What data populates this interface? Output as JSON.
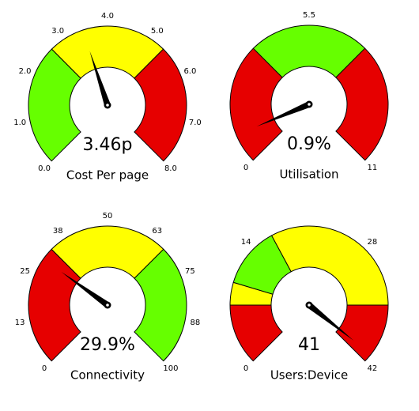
{
  "chart_data": [
    {
      "type": "gauge",
      "title": "Cost Per page",
      "value": 3.46,
      "value_label": "3.46p",
      "ylim": [
        0,
        8
      ],
      "yticks": [
        {
          "value": 0,
          "label": "0.0"
        },
        {
          "value": 1,
          "label": "1.0"
        },
        {
          "value": 2,
          "label": "2.0"
        },
        {
          "value": 3,
          "label": "3.0"
        },
        {
          "value": 4,
          "label": "4.0"
        },
        {
          "value": 5,
          "label": "5.0"
        },
        {
          "value": 6,
          "label": "6.0"
        },
        {
          "value": 7,
          "label": "7.0"
        },
        {
          "value": 8,
          "label": "8.0"
        }
      ],
      "bands": [
        {
          "from": 0,
          "to": 2.67,
          "color": "#66ff00"
        },
        {
          "from": 2.67,
          "to": 5.33,
          "color": "#ffff00"
        },
        {
          "from": 5.33,
          "to": 8,
          "color": "#e60000"
        }
      ]
    },
    {
      "type": "gauge",
      "title": "Utilisation",
      "value": 0.9,
      "value_label": "0.9%",
      "ylim": [
        0,
        11
      ],
      "yticks": [
        0,
        5.5,
        11
      ],
      "bands": [
        {
          "from": 0,
          "to": 3.67,
          "color": "#e60000"
        },
        {
          "from": 3.67,
          "to": 7.33,
          "color": "#66ff00"
        },
        {
          "from": 7.33,
          "to": 11,
          "color": "#e60000"
        }
      ]
    },
    {
      "type": "gauge",
      "title": "Connectivity",
      "value": 29.9,
      "value_label": "29.9%",
      "ylim": [
        0,
        100
      ],
      "yticks": [
        0,
        {
          "value": 12.5,
          "label": "13"
        },
        25,
        {
          "value": 37.5,
          "label": "38"
        },
        50,
        {
          "value": 62.5,
          "label": "63"
        },
        75,
        {
          "value": 87.5,
          "label": "88"
        },
        100
      ],
      "bands": [
        {
          "from": 0,
          "to": 33.3,
          "color": "#e60000"
        },
        {
          "from": 33.3,
          "to": 66.7,
          "color": "#ffff00"
        },
        {
          "from": 66.7,
          "to": 100,
          "color": "#66ff00"
        }
      ]
    },
    {
      "type": "gauge",
      "title": "Users:Device",
      "value": 41,
      "ylim": [
        0,
        42
      ],
      "yticks": [
        0,
        14,
        28,
        42
      ],
      "bands": [
        {
          "from": 0,
          "to": 7,
          "color": "#e60000"
        },
        {
          "from": 7,
          "to": 9.6,
          "color": "#ffff00"
        },
        {
          "from": 9.6,
          "to": 16.6,
          "color": "#66ff00"
        },
        {
          "from": 16.6,
          "to": 35,
          "color": "#ffff00"
        },
        {
          "from": 35,
          "to": 42,
          "color": "#e60000"
        }
      ]
    }
  ]
}
